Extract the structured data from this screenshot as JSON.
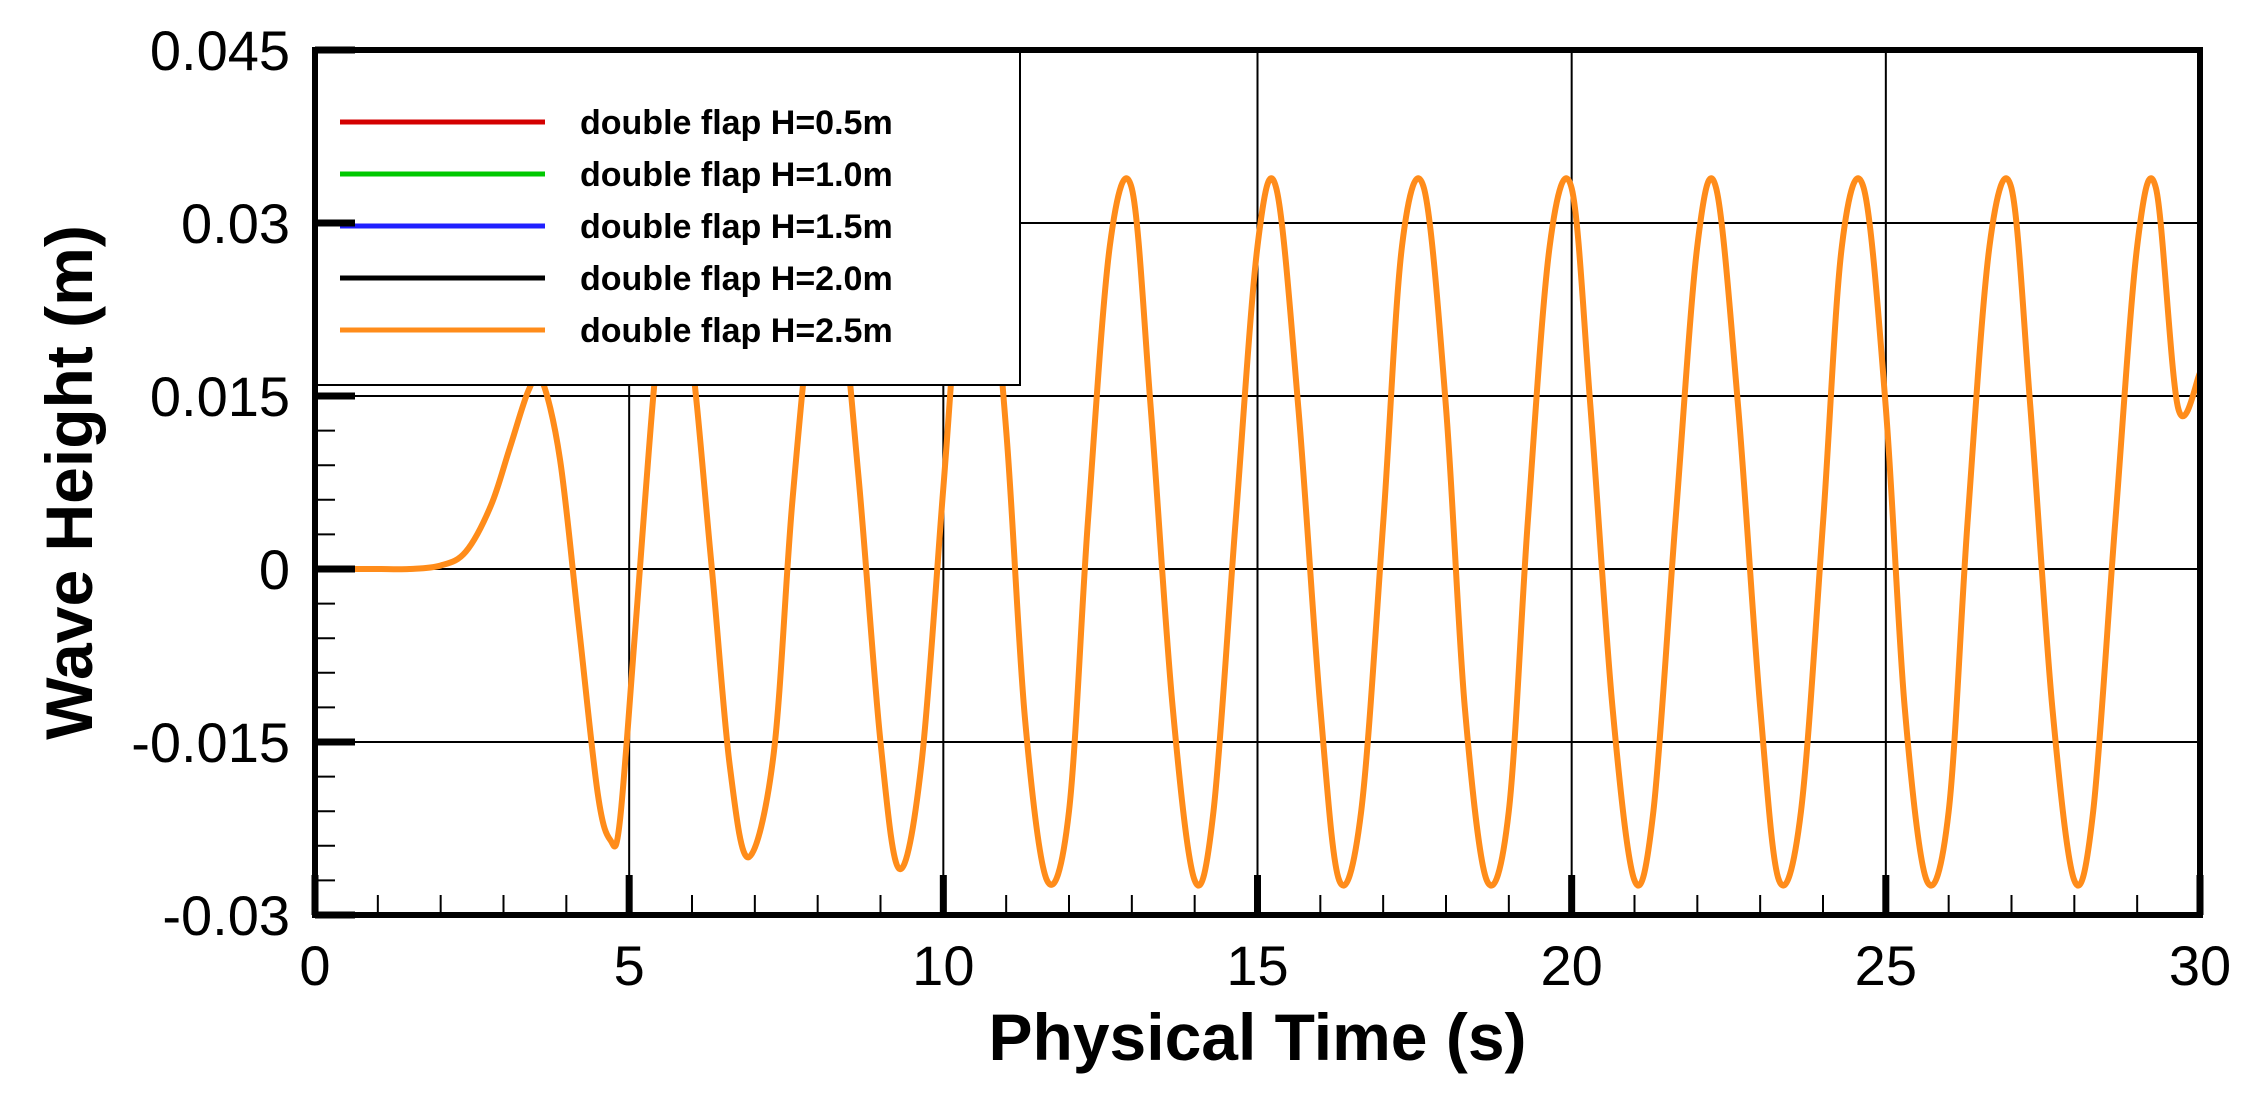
{
  "chart_data": {
    "type": "line",
    "xlabel": "Physical Time (s)",
    "ylabel": "Wave Height (m)",
    "xlim": [
      0,
      30
    ],
    "ylim": [
      -0.03,
      0.045
    ],
    "x_ticks": [
      0,
      5,
      10,
      15,
      20,
      25,
      30
    ],
    "x_tick_labels": [
      "0",
      "5",
      "10",
      "15",
      "20",
      "25",
      "30"
    ],
    "y_ticks": [
      -0.03,
      -0.015,
      0,
      0.015,
      0.03,
      0.045
    ],
    "y_tick_labels": [
      "-0.03",
      "-0.015",
      "0",
      "0.015",
      "0.03",
      "0.045"
    ],
    "grid": true,
    "legend_position": "top-left",
    "x": [
      0.0,
      0.5,
      1.0,
      1.5,
      2.0,
      2.4,
      2.8,
      3.1,
      3.4,
      3.6,
      3.9,
      4.2,
      4.5,
      4.7,
      4.85,
      5.1,
      5.4,
      5.6,
      5.95,
      6.3,
      6.6,
      6.9,
      7.3,
      7.6,
      7.95,
      8.3,
      8.65,
      9.0,
      9.3,
      9.65,
      10.0,
      10.3,
      10.65,
      11.0,
      11.3,
      11.65,
      12.0,
      12.3,
      12.65,
      13.0,
      13.3,
      13.65,
      14.0,
      14.3,
      14.65,
      15.0,
      15.3,
      15.65,
      16.0,
      16.3,
      16.65,
      17.0,
      17.3,
      17.65,
      18.0,
      18.3,
      18.65,
      19.0,
      19.3,
      19.65,
      20.0,
      20.3,
      20.65,
      21.0,
      21.3,
      21.65,
      22.0,
      22.3,
      22.65,
      23.0,
      23.3,
      23.65,
      24.0,
      24.3,
      24.65,
      25.0,
      25.3,
      25.65,
      26.0,
      26.3,
      26.65,
      27.0,
      27.3,
      27.65,
      28.0,
      28.3,
      28.65,
      29.0,
      29.3,
      29.65,
      30.0
    ],
    "series": [
      {
        "name": "double flap H=0.5m",
        "color": "#d40000",
        "values": [
          0.0,
          0.0,
          0.0,
          0.0,
          0.0003,
          0.0015,
          0.0055,
          0.0105,
          0.0155,
          0.0165,
          0.0095,
          -0.005,
          -0.0195,
          -0.0235,
          -0.022,
          -0.005,
          0.016,
          0.0245,
          0.02,
          0.001,
          -0.017,
          -0.025,
          -0.016,
          0.006,
          0.024,
          0.026,
          0.008,
          -0.015,
          -0.026,
          -0.017,
          0.007,
          0.027,
          0.031,
          0.012,
          -0.013,
          -0.027,
          -0.021,
          0.004,
          0.028,
          0.033,
          0.014,
          -0.012,
          -0.027,
          -0.021,
          0.004,
          0.028,
          0.033,
          0.014,
          -0.012,
          -0.027,
          -0.021,
          0.004,
          0.028,
          0.033,
          0.014,
          -0.012,
          -0.027,
          -0.021,
          0.004,
          0.028,
          0.033,
          0.014,
          -0.012,
          -0.027,
          -0.021,
          0.004,
          0.028,
          0.033,
          0.014,
          -0.012,
          -0.027,
          -0.021,
          0.004,
          0.028,
          0.033,
          0.014,
          -0.012,
          -0.027,
          -0.021,
          0.004,
          0.028,
          0.033,
          0.014,
          -0.012,
          -0.027,
          -0.021,
          0.004,
          0.028,
          0.033,
          0.014,
          0.017
        ]
      },
      {
        "name": "double flap H=1.0m",
        "color": "#00c800",
        "values": [
          0.0,
          0.0,
          0.0,
          0.0,
          0.0003,
          0.0015,
          0.0055,
          0.0105,
          0.0155,
          0.0165,
          0.0095,
          -0.005,
          -0.0195,
          -0.0235,
          -0.022,
          -0.005,
          0.016,
          0.0245,
          0.02,
          0.001,
          -0.017,
          -0.025,
          -0.016,
          0.006,
          0.024,
          0.026,
          0.008,
          -0.015,
          -0.026,
          -0.017,
          0.007,
          0.027,
          0.031,
          0.012,
          -0.013,
          -0.027,
          -0.021,
          0.004,
          0.028,
          0.033,
          0.014,
          -0.012,
          -0.027,
          -0.021,
          0.004,
          0.028,
          0.033,
          0.014,
          -0.012,
          -0.027,
          -0.021,
          0.004,
          0.028,
          0.033,
          0.014,
          -0.012,
          -0.027,
          -0.021,
          0.004,
          0.028,
          0.033,
          0.014,
          -0.012,
          -0.027,
          -0.021,
          0.004,
          0.028,
          0.033,
          0.014,
          -0.012,
          -0.027,
          -0.021,
          0.004,
          0.028,
          0.033,
          0.014,
          -0.012,
          -0.027,
          -0.021,
          0.004,
          0.028,
          0.033,
          0.014,
          -0.012,
          -0.027,
          -0.021,
          0.004,
          0.028,
          0.033,
          0.014,
          0.017
        ]
      },
      {
        "name": "double flap H=1.5m",
        "color": "#2020ff",
        "values": [
          0.0,
          0.0,
          0.0,
          0.0,
          0.0003,
          0.0015,
          0.0055,
          0.0105,
          0.0155,
          0.0165,
          0.0095,
          -0.005,
          -0.0195,
          -0.0235,
          -0.022,
          -0.005,
          0.016,
          0.0245,
          0.02,
          0.001,
          -0.017,
          -0.025,
          -0.016,
          0.006,
          0.024,
          0.026,
          0.008,
          -0.015,
          -0.026,
          -0.017,
          0.007,
          0.027,
          0.031,
          0.012,
          -0.013,
          -0.027,
          -0.021,
          0.004,
          0.028,
          0.033,
          0.014,
          -0.012,
          -0.027,
          -0.021,
          0.004,
          0.028,
          0.033,
          0.014,
          -0.012,
          -0.027,
          -0.021,
          0.004,
          0.028,
          0.033,
          0.014,
          -0.012,
          -0.027,
          -0.021,
          0.004,
          0.028,
          0.033,
          0.014,
          -0.012,
          -0.027,
          -0.021,
          0.004,
          0.028,
          0.033,
          0.014,
          -0.012,
          -0.027,
          -0.021,
          0.004,
          0.028,
          0.033,
          0.014,
          -0.012,
          -0.027,
          -0.021,
          0.004,
          0.028,
          0.033,
          0.014,
          -0.012,
          -0.027,
          -0.021,
          0.004,
          0.028,
          0.033,
          0.014,
          0.017
        ]
      },
      {
        "name": "double flap H=2.0m",
        "color": "#000000",
        "values": [
          0.0,
          0.0,
          0.0,
          0.0,
          0.0003,
          0.0015,
          0.0055,
          0.0105,
          0.0155,
          0.0165,
          0.0095,
          -0.005,
          -0.0195,
          -0.0235,
          -0.022,
          -0.005,
          0.016,
          0.0245,
          0.02,
          0.001,
          -0.017,
          -0.025,
          -0.016,
          0.006,
          0.024,
          0.026,
          0.008,
          -0.015,
          -0.026,
          -0.017,
          0.007,
          0.027,
          0.031,
          0.012,
          -0.013,
          -0.027,
          -0.021,
          0.004,
          0.028,
          0.033,
          0.014,
          -0.012,
          -0.027,
          -0.021,
          0.004,
          0.028,
          0.033,
          0.014,
          -0.012,
          -0.027,
          -0.021,
          0.004,
          0.028,
          0.033,
          0.014,
          -0.012,
          -0.027,
          -0.021,
          0.004,
          0.028,
          0.033,
          0.014,
          -0.012,
          -0.027,
          -0.021,
          0.004,
          0.028,
          0.033,
          0.014,
          -0.012,
          -0.027,
          -0.021,
          0.004,
          0.028,
          0.033,
          0.014,
          -0.012,
          -0.027,
          -0.021,
          0.004,
          0.028,
          0.033,
          0.014,
          -0.012,
          -0.027,
          -0.021,
          0.004,
          0.028,
          0.033,
          0.014,
          0.017
        ]
      },
      {
        "name": "double flap H=2.5m",
        "color": "#ff8c1a",
        "values": [
          0.0,
          0.0,
          0.0,
          0.0,
          0.0003,
          0.0015,
          0.0055,
          0.0105,
          0.0155,
          0.0165,
          0.0095,
          -0.005,
          -0.0195,
          -0.0235,
          -0.022,
          -0.005,
          0.016,
          0.0245,
          0.02,
          0.001,
          -0.017,
          -0.025,
          -0.016,
          0.006,
          0.024,
          0.026,
          0.008,
          -0.015,
          -0.026,
          -0.017,
          0.007,
          0.027,
          0.031,
          0.012,
          -0.013,
          -0.027,
          -0.021,
          0.004,
          0.028,
          0.033,
          0.014,
          -0.012,
          -0.027,
          -0.021,
          0.004,
          0.028,
          0.033,
          0.014,
          -0.012,
          -0.027,
          -0.021,
          0.004,
          0.028,
          0.033,
          0.014,
          -0.012,
          -0.027,
          -0.021,
          0.004,
          0.028,
          0.033,
          0.014,
          -0.012,
          -0.027,
          -0.021,
          0.004,
          0.028,
          0.033,
          0.014,
          -0.012,
          -0.027,
          -0.021,
          0.004,
          0.028,
          0.033,
          0.014,
          -0.012,
          -0.027,
          -0.021,
          0.004,
          0.028,
          0.033,
          0.014,
          -0.012,
          -0.027,
          -0.021,
          0.004,
          0.028,
          0.033,
          0.014,
          0.017
        ]
      }
    ]
  }
}
